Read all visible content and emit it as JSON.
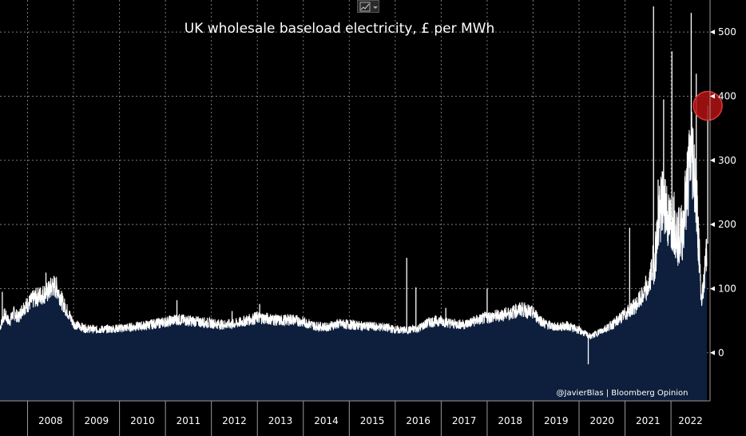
{
  "chart_data": {
    "type": "area",
    "title": "UK wholesale baseload electricity, £ per MWh",
    "xlabel": "",
    "ylabel": "",
    "x_categories": [
      "2008",
      "2009",
      "2010",
      "2011",
      "2012",
      "2013",
      "2014",
      "2015",
      "2016",
      "2017",
      "2018",
      "2019",
      "2020",
      "2021",
      "2022"
    ],
    "yticks": [
      0,
      100,
      200,
      300,
      400,
      500
    ],
    "ylim": [
      -75,
      550
    ],
    "xlim_years": [
      2007.4,
      2022.85
    ],
    "grid": true,
    "series": [
      {
        "values_by_date": [
          [
            "2007.40",
            40
          ],
          [
            "2007.50",
            60
          ],
          [
            "2007.60",
            48
          ],
          [
            "2007.70",
            62
          ],
          [
            "2007.80",
            55
          ],
          [
            "2007.90",
            70
          ],
          [
            "2008.00",
            75
          ],
          [
            "2008.15",
            85
          ],
          [
            "2008.30",
            90
          ],
          [
            "2008.45",
            95
          ],
          [
            "2008.55",
            105
          ],
          [
            "2008.65",
            100
          ],
          [
            "2008.75",
            80
          ],
          [
            "2008.90",
            60
          ],
          [
            "2009.00",
            45
          ],
          [
            "2009.25",
            38
          ],
          [
            "2009.50",
            36
          ],
          [
            "2009.75",
            37
          ],
          [
            "2010.00",
            38
          ],
          [
            "2010.25",
            40
          ],
          [
            "2010.50",
            42
          ],
          [
            "2010.75",
            45
          ],
          [
            "2011.00",
            48
          ],
          [
            "2011.25",
            52
          ],
          [
            "2011.50",
            50
          ],
          [
            "2011.75",
            48
          ],
          [
            "2012.00",
            46
          ],
          [
            "2012.25",
            44
          ],
          [
            "2012.50",
            45
          ],
          [
            "2012.75",
            50
          ],
          [
            "2013.00",
            55
          ],
          [
            "2013.25",
            53
          ],
          [
            "2013.50",
            50
          ],
          [
            "2013.75",
            52
          ],
          [
            "2014.00",
            48
          ],
          [
            "2014.25",
            42
          ],
          [
            "2014.50",
            40
          ],
          [
            "2014.75",
            45
          ],
          [
            "2015.00",
            44
          ],
          [
            "2015.25",
            42
          ],
          [
            "2015.50",
            41
          ],
          [
            "2015.75",
            40
          ],
          [
            "2016.00",
            36
          ],
          [
            "2016.25",
            35
          ],
          [
            "2016.50",
            38
          ],
          [
            "2016.75",
            48
          ],
          [
            "2017.00",
            50
          ],
          [
            "2017.25",
            45
          ],
          [
            "2017.50",
            44
          ],
          [
            "2017.75",
            50
          ],
          [
            "2018.00",
            55
          ],
          [
            "2018.25",
            58
          ],
          [
            "2018.50",
            62
          ],
          [
            "2018.75",
            68
          ],
          [
            "2019.00",
            62
          ],
          [
            "2019.25",
            45
          ],
          [
            "2019.50",
            40
          ],
          [
            "2019.75",
            42
          ],
          [
            "2020.00",
            35
          ],
          [
            "2020.25",
            25
          ],
          [
            "2020.50",
            35
          ],
          [
            "2020.75",
            45
          ],
          [
            "2021.00",
            60
          ],
          [
            "2021.25",
            75
          ],
          [
            "2021.50",
            100
          ],
          [
            "2021.65",
            150
          ],
          [
            "2021.75",
            210
          ],
          [
            "2021.85",
            250
          ],
          [
            "2021.95",
            200
          ],
          [
            "2022.05",
            210
          ],
          [
            "2022.15",
            180
          ],
          [
            "2022.25",
            190
          ],
          [
            "2022.35",
            260
          ],
          [
            "2022.45",
            320
          ],
          [
            "2022.52",
            280
          ],
          [
            "2022.60",
            180
          ],
          [
            "2022.66",
            80
          ],
          [
            "2022.72",
            110
          ],
          [
            "2022.78",
            170
          ]
        ],
        "spikes_by_date": [
          [
            "2007.45",
            95
          ],
          [
            "2008.40",
            125
          ],
          [
            "2008.60",
            95
          ],
          [
            "2011.25",
            82
          ],
          [
            "2012.45",
            65
          ],
          [
            "2013.05",
            76
          ],
          [
            "2016.25",
            148
          ],
          [
            "2016.45",
            102
          ],
          [
            "2017.10",
            70
          ],
          [
            "2018.00",
            100
          ],
          [
            "2020.20",
            -18
          ],
          [
            "2021.10",
            195
          ],
          [
            "2021.45",
            120
          ],
          [
            "2021.62",
            540
          ],
          [
            "2021.72",
            270
          ],
          [
            "2021.84",
            395
          ],
          [
            "2022.02",
            470
          ],
          [
            "2022.16",
            220
          ],
          [
            "2022.44",
            530
          ],
          [
            "2022.55",
            435
          ],
          [
            "2022.80",
            385
          ]
        ]
      }
    ],
    "highlight": {
      "x": "2022.80",
      "y": 385
    },
    "credit": "@JavierBlas  |  Bloomberg Opinion"
  },
  "colors": {
    "background": "#000000",
    "area_fill": "#0d1f3c",
    "line": "#ffffff",
    "highlight_fill": "#b31212",
    "highlight_stroke": "#d93a3a",
    "grid": "#7a7a7a"
  },
  "toolbar": {
    "chart_type_icon": "line-chart-icon",
    "dropdown_icon": "chevron-down-icon"
  }
}
